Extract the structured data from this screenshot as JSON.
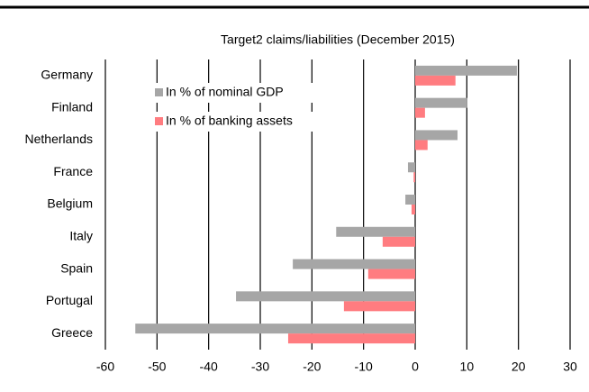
{
  "chart_data": {
    "type": "hbar",
    "title": "Target2 claims/liabilities (December 2015)",
    "categories": [
      "Germany",
      "Finland",
      "Netherlands",
      "France",
      "Belgium",
      "Italy",
      "Spain",
      "Portugal",
      "Greece"
    ],
    "series": [
      {
        "name": "In % of nominal GDP",
        "color": "#a6a6a6",
        "values": [
          19.7,
          10.1,
          8.2,
          -1.4,
          -1.9,
          -15.3,
          -23.7,
          -34.7,
          -54.2
        ]
      },
      {
        "name": "In % of banking assets",
        "color": "#ff7c80",
        "values": [
          7.8,
          1.9,
          2.4,
          -0.3,
          -0.7,
          -6.3,
          -9.1,
          -13.8,
          -24.6
        ]
      }
    ],
    "xlim": [
      -60,
      30
    ],
    "xticks": [
      -60,
      -50,
      -40,
      -30,
      -20,
      -10,
      0,
      10,
      20,
      30
    ],
    "grid": true,
    "legend": "upper left"
  }
}
